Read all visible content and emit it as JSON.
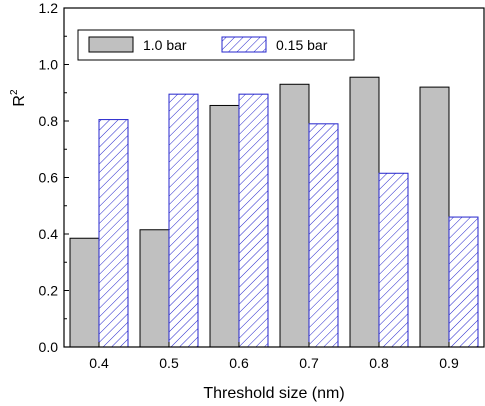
{
  "chart_data": {
    "type": "bar",
    "xlabel": "Threshold size (nm)",
    "ylabel": "R",
    "ylabel_superscript": "2",
    "categories": [
      "0.4",
      "0.5",
      "0.6",
      "0.7",
      "0.8",
      "0.9"
    ],
    "series": [
      {
        "name": "1.0 bar",
        "values": [
          0.385,
          0.415,
          0.855,
          0.93,
          0.955,
          0.92
        ],
        "style": "solid-gray",
        "fill": "#c0c0c0",
        "stroke": "#000000"
      },
      {
        "name": "0.15 bar",
        "values": [
          0.805,
          0.895,
          0.895,
          0.79,
          0.615,
          0.46
        ],
        "style": "hatched-blue",
        "fill": "#ffffff",
        "stroke": "#2424cc"
      }
    ],
    "ylim": [
      0.0,
      1.2
    ],
    "yticks": [
      "0.0",
      "0.2",
      "0.4",
      "0.6",
      "0.8",
      "1.0",
      "1.2"
    ],
    "legend_position": "top-left",
    "grid": false
  }
}
